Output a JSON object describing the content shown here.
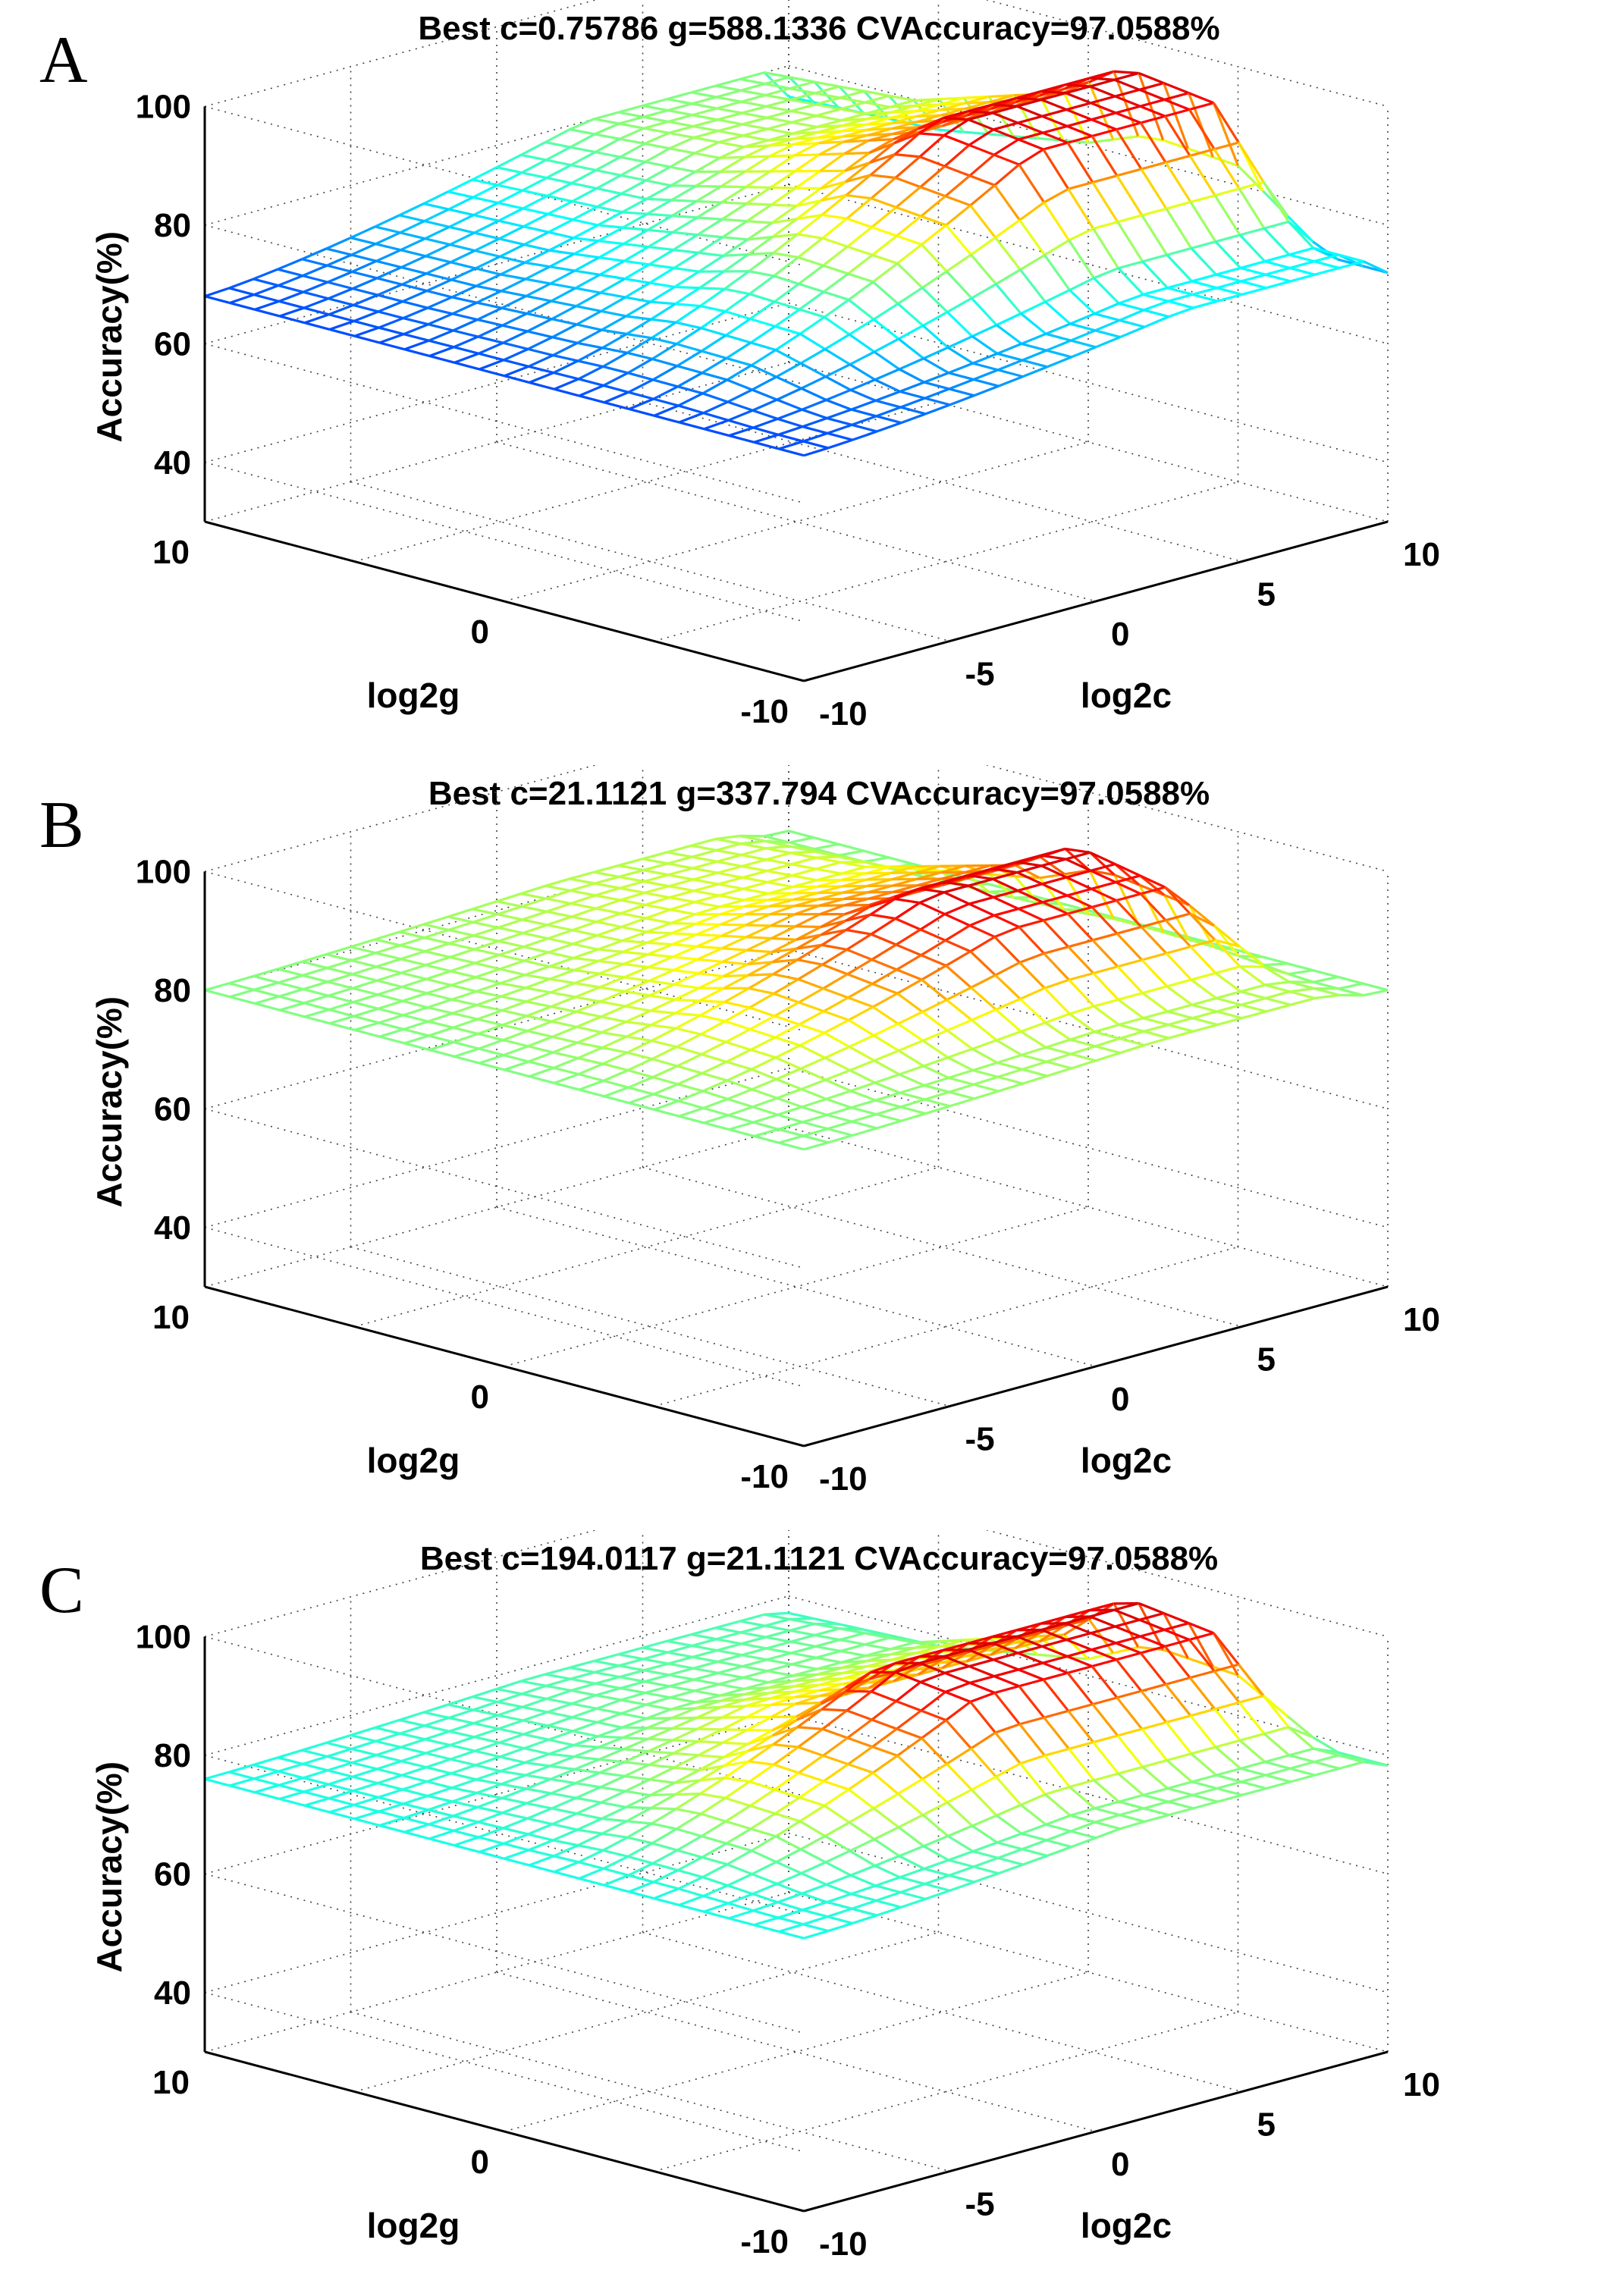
{
  "chart_data": [
    {
      "type": "surface",
      "panel_label": "A",
      "title": "Best c=0.75786 g=588.1336 CVAccuracy=97.0588%",
      "xlabel": "log2c",
      "ylabel": "log2g",
      "zlabel": "Accuracy(%)",
      "xlim": [
        -10,
        10
      ],
      "ylim": [
        -10,
        10
      ],
      "zlim": [
        30,
        100
      ],
      "x_ticks": [
        "-10",
        "-5",
        "0",
        "5",
        "10"
      ],
      "y_ticks": [
        "-10",
        "0",
        "10"
      ],
      "z_ticks": [
        "40",
        "60",
        "80",
        "100"
      ],
      "grid": true,
      "floor": 68,
      "best": {
        "c": 0.75786,
        "g": 588.1336,
        "accuracy": 97.0588
      },
      "ridge": [
        {
          "g": 10,
          "acc": 80
        },
        {
          "g": 5,
          "acc": 82
        },
        {
          "g": 0,
          "acc": 90
        },
        {
          "g": -2,
          "acc": 97
        },
        {
          "g": -5,
          "acc": 95
        },
        {
          "g": -8,
          "acc": 75
        }
      ],
      "plateau_lo": 3,
      "plateau_hi": 9.5
    },
    {
      "type": "surface",
      "panel_label": "B",
      "title": "Best c=21.1121 g=337.794 CVAccuracy=97.0588%",
      "xlabel": "log2c",
      "ylabel": "log2g",
      "zlabel": "Accuracy(%)",
      "xlim": [
        -10,
        10
      ],
      "ylim": [
        -10,
        10
      ],
      "zlim": [
        30,
        100
      ],
      "x_ticks": [
        "-10",
        "-5",
        "0",
        "5",
        "10"
      ],
      "y_ticks": [
        "-10",
        "0",
        "10"
      ],
      "z_ticks": [
        "40",
        "60",
        "80",
        "100"
      ],
      "grid": true,
      "floor": 80,
      "best": {
        "c": 21.1121,
        "g": 337.794,
        "accuracy": 97.0588
      },
      "ridge": [
        {
          "g": 10,
          "acc": 82
        },
        {
          "g": 5,
          "acc": 84
        },
        {
          "g": 0,
          "acc": 91
        },
        {
          "g": -2,
          "acc": 97
        },
        {
          "g": -5,
          "acc": 94
        },
        {
          "g": -8,
          "acc": 82
        }
      ],
      "plateau_lo": 2,
      "plateau_hi": 8
    },
    {
      "type": "surface",
      "panel_label": "C",
      "title": "Best c=194.0117 g=21.1121 CVAccuracy=97.0588%",
      "xlabel": "log2c",
      "ylabel": "log2g",
      "zlabel": "Accuracy(%)",
      "xlim": [
        -10,
        10
      ],
      "ylim": [
        -10,
        10
      ],
      "zlim": [
        30,
        100
      ],
      "x_ticks": [
        "-10",
        "-5",
        "0",
        "5",
        "10"
      ],
      "y_ticks": [
        "-10",
        "0",
        "10"
      ],
      "z_ticks": [
        "40",
        "60",
        "80",
        "100"
      ],
      "grid": true,
      "floor": 76,
      "best": {
        "c": 194.0117,
        "g": 21.1121,
        "accuracy": 97.0588
      },
      "ridge": [
        {
          "g": 10,
          "acc": 78
        },
        {
          "g": 5,
          "acc": 80
        },
        {
          "g": 0,
          "acc": 88
        },
        {
          "g": -2,
          "acc": 97
        },
        {
          "g": -5,
          "acc": 95
        },
        {
          "g": -8,
          "acc": 80
        }
      ],
      "plateau_lo": 1,
      "plateau_hi": 9.5
    }
  ]
}
